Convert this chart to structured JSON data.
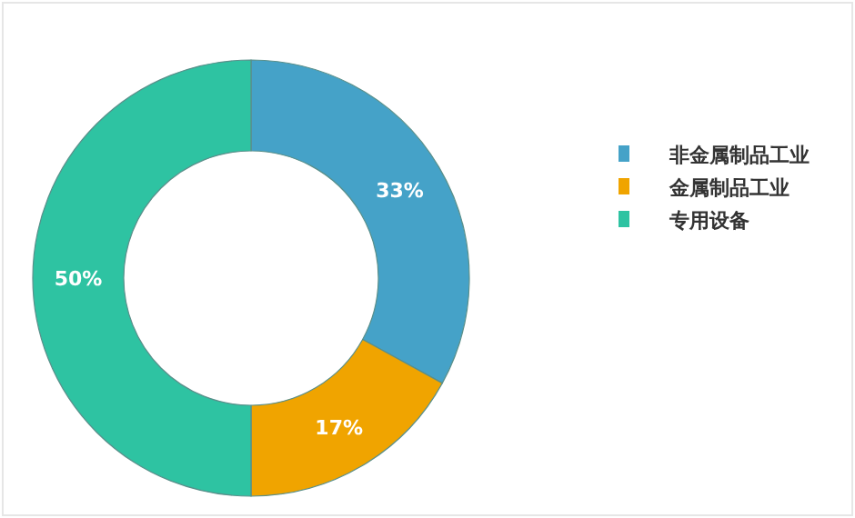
{
  "chart_data": {
    "type": "donut",
    "categories": [
      "非金属制品工业",
      "金属制品工业",
      "专用设备"
    ],
    "values": [
      33,
      17,
      50
    ],
    "colors": [
      "#45a2c8",
      "#f0a400",
      "#2ec3a2"
    ],
    "value_labels": [
      "33%",
      "17%",
      "50%"
    ],
    "legend": "right"
  }
}
